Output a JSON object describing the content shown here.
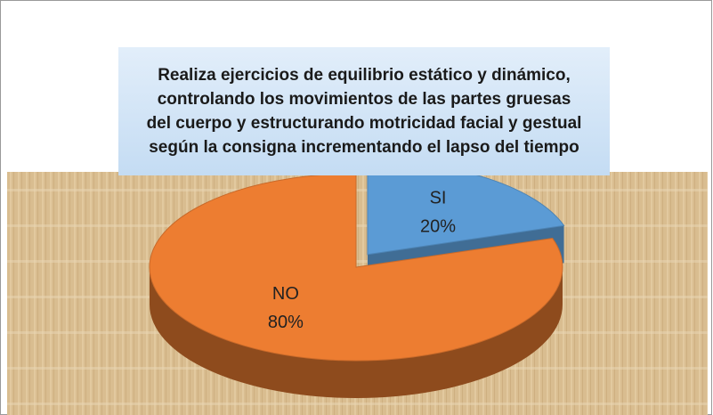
{
  "chart_data": {
    "type": "pie",
    "title": "Realiza ejercicios de equilibrio estático y dinámico,\ncontrolando los movimientos de las partes gruesas\ndel cuerpo y estructurando motricidad facial y gestual\nsegún la consigna incrementando el lapso del tiempo",
    "categories": [
      "SI",
      "NO"
    ],
    "values": [
      20,
      80
    ],
    "value_labels": [
      "20%",
      "80%"
    ],
    "colors": [
      "#5b9bd5",
      "#ed7d31"
    ]
  }
}
